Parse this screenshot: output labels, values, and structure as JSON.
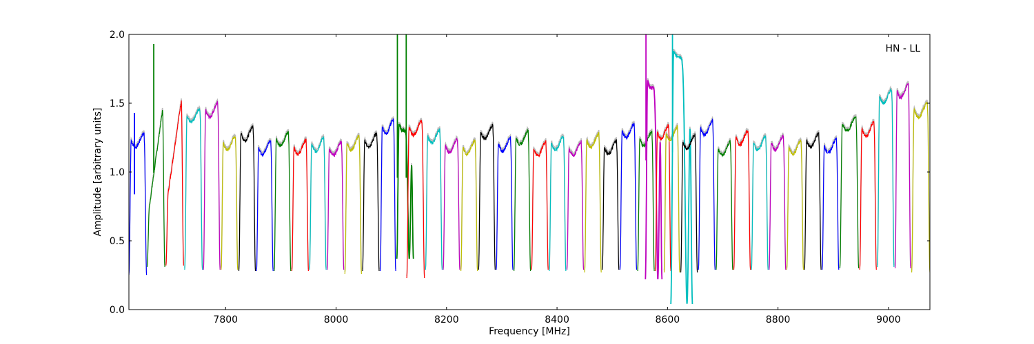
{
  "chart_data": {
    "type": "line",
    "title": "",
    "annotation": "HN - LL",
    "xlabel": "Frequency [MHz]",
    "ylabel": "Amplitude [arbitrary units]",
    "xlim": [
      7625,
      9075
    ],
    "ylim": [
      0.0,
      2.0
    ],
    "xticks": [
      7800,
      8000,
      8200,
      8400,
      8600,
      8800,
      9000
    ],
    "yticks": [
      0.0,
      0.5,
      1.0,
      1.5,
      2.0
    ],
    "xtick_labels": [
      "7800",
      "8000",
      "8200",
      "8400",
      "8600",
      "8800",
      "9000"
    ],
    "ytick_labels": [
      "0.0",
      "0.5",
      "1.0",
      "1.5",
      "2.0"
    ],
    "grid": false,
    "background_series": {
      "color": "#bbbbbb",
      "description": "unflagged data drawn underneath"
    },
    "colors": {
      "blue": "#0000ff",
      "green": "#007f00",
      "red": "#ff0000",
      "cyan": "#00bfbf",
      "magenta": "#bf00bf",
      "olive": "#bfbf00",
      "black": "#000000"
    },
    "series": [
      {
        "x0": 7625,
        "x1": 7657,
        "level": 1.23,
        "dip": 0.25,
        "color": "#0000ff",
        "peak": 1.43,
        "peak_x": 7635
      },
      {
        "x0": 7658,
        "x1": 7690,
        "level": 1.45,
        "dip": 0.31,
        "color": "#007f00",
        "ramp_from": 0.75,
        "spike": 1.93,
        "spike_x": 7670
      },
      {
        "x0": 7692,
        "x1": 7724,
        "level": 1.52,
        "dip": 0.32,
        "color": "#ff0000",
        "ramp_from": 0.85
      },
      {
        "x0": 7726,
        "x1": 7758,
        "level": 1.41,
        "dip": 0.29,
        "color": "#00bfbf"
      },
      {
        "x0": 7760,
        "x1": 7790,
        "level": 1.45,
        "dip": 0.29,
        "color": "#bf00bf"
      },
      {
        "x0": 7792,
        "x1": 7822,
        "level": 1.21,
        "dip": 0.29,
        "color": "#bfbf00"
      },
      {
        "x0": 7824,
        "x1": 7854,
        "level": 1.28,
        "dip": 0.28,
        "color": "#000000"
      },
      {
        "x0": 7856,
        "x1": 7886,
        "level": 1.18,
        "dip": 0.28,
        "color": "#0000ff"
      },
      {
        "x0": 7888,
        "x1": 7918,
        "level": 1.24,
        "dip": 0.28,
        "color": "#007f00"
      },
      {
        "x0": 7920,
        "x1": 7950,
        "level": 1.18,
        "dip": 0.28,
        "color": "#ff0000"
      },
      {
        "x0": 7952,
        "x1": 7982,
        "level": 1.2,
        "dip": 0.29,
        "color": "#00bfbf"
      },
      {
        "x0": 7984,
        "x1": 8014,
        "level": 1.17,
        "dip": 0.29,
        "color": "#bf00bf"
      },
      {
        "x0": 8016,
        "x1": 8046,
        "level": 1.21,
        "dip": 0.26,
        "color": "#bfbf00"
      },
      {
        "x0": 8048,
        "x1": 8078,
        "level": 1.23,
        "dip": 0.28,
        "color": "#000000"
      },
      {
        "x0": 8080,
        "x1": 8108,
        "level": 1.33,
        "dip": 0.28,
        "color": "#0000ff"
      },
      {
        "x0": 8110,
        "x1": 8140,
        "level": 1.35,
        "dip": 0.37,
        "color": "#007f00",
        "deep_notch": true,
        "spike": 2.0,
        "spike_x": 8111,
        "spike2": 2.0,
        "spike2_x": 8127
      },
      {
        "x0": 8128,
        "x1": 8160,
        "level": 1.32,
        "dip": 0.23,
        "color": "#ff0000"
      },
      {
        "x0": 8162,
        "x1": 8192,
        "level": 1.26,
        "dip": 0.29,
        "color": "#00bfbf"
      },
      {
        "x0": 8194,
        "x1": 8224,
        "level": 1.19,
        "dip": 0.29,
        "color": "#bf00bf"
      },
      {
        "x0": 8226,
        "x1": 8256,
        "level": 1.18,
        "dip": 0.28,
        "color": "#bfbf00"
      },
      {
        "x0": 8258,
        "x1": 8288,
        "level": 1.29,
        "dip": 0.29,
        "color": "#000000"
      },
      {
        "x0": 8290,
        "x1": 8320,
        "level": 1.2,
        "dip": 0.29,
        "color": "#0000ff"
      },
      {
        "x0": 8322,
        "x1": 8352,
        "level": 1.25,
        "dip": 0.28,
        "color": "#007f00"
      },
      {
        "x0": 8354,
        "x1": 8384,
        "level": 1.17,
        "dip": 0.29,
        "color": "#ff0000"
      },
      {
        "x0": 8386,
        "x1": 8416,
        "level": 1.21,
        "dip": 0.28,
        "color": "#00bfbf"
      },
      {
        "x0": 8418,
        "x1": 8448,
        "level": 1.17,
        "dip": 0.29,
        "color": "#bf00bf"
      },
      {
        "x0": 8450,
        "x1": 8480,
        "level": 1.23,
        "dip": 0.27,
        "color": "#bfbf00"
      },
      {
        "x0": 8482,
        "x1": 8512,
        "level": 1.18,
        "dip": 0.29,
        "color": "#000000"
      },
      {
        "x0": 8514,
        "x1": 8544,
        "level": 1.3,
        "dip": 0.29,
        "color": "#0000ff"
      },
      {
        "x0": 8546,
        "x1": 8576,
        "level": 1.24,
        "dip": 0.28,
        "color": "#007f00"
      },
      {
        "x0": 8560,
        "x1": 8590,
        "level": 1.66,
        "dip": 0.22,
        "color": "#bf00bf",
        "deep_notch": true,
        "spike": 2.0,
        "spike_x": 8561
      },
      {
        "x0": 8578,
        "x1": 8606,
        "level": 1.29,
        "dip": 0.28,
        "color": "#ff0000"
      },
      {
        "x0": 8594,
        "x1": 8622,
        "level": 1.28,
        "dip": 0.27,
        "color": "#bfbf00"
      },
      {
        "x0": 8606,
        "x1": 8645,
        "level": 1.88,
        "dip": 0.04,
        "color": "#00bfbf",
        "deep_notch": true,
        "spike": 2.0,
        "spike_x": 8609
      },
      {
        "x0": 8624,
        "x1": 8654,
        "level": 1.22,
        "dip": 0.27,
        "color": "#000000"
      },
      {
        "x0": 8656,
        "x1": 8686,
        "level": 1.32,
        "dip": 0.29,
        "color": "#0000ff"
      },
      {
        "x0": 8688,
        "x1": 8718,
        "level": 1.17,
        "dip": 0.29,
        "color": "#007f00"
      },
      {
        "x0": 8720,
        "x1": 8750,
        "level": 1.25,
        "dip": 0.29,
        "color": "#ff0000"
      },
      {
        "x0": 8752,
        "x1": 8782,
        "level": 1.21,
        "dip": 0.29,
        "color": "#00bfbf"
      },
      {
        "x0": 8784,
        "x1": 8814,
        "level": 1.21,
        "dip": 0.29,
        "color": "#bf00bf"
      },
      {
        "x0": 8816,
        "x1": 8846,
        "level": 1.18,
        "dip": 0.29,
        "color": "#bfbf00"
      },
      {
        "x0": 8848,
        "x1": 8878,
        "level": 1.23,
        "dip": 0.29,
        "color": "#000000"
      },
      {
        "x0": 8880,
        "x1": 8910,
        "level": 1.19,
        "dip": 0.29,
        "color": "#0000ff"
      },
      {
        "x0": 8912,
        "x1": 8946,
        "level": 1.35,
        "dip": 0.3,
        "color": "#007f00"
      },
      {
        "x0": 8948,
        "x1": 8978,
        "level": 1.31,
        "dip": 0.29,
        "color": "#ff0000"
      },
      {
        "x0": 8980,
        "x1": 9010,
        "level": 1.55,
        "dip": 0.31,
        "color": "#00bfbf"
      },
      {
        "x0": 9012,
        "x1": 9040,
        "level": 1.59,
        "dip": 0.3,
        "color": "#bf00bf"
      },
      {
        "x0": 9042,
        "x1": 9075,
        "level": 1.45,
        "dip": 0.27,
        "color": "#bfbf00"
      }
    ]
  }
}
